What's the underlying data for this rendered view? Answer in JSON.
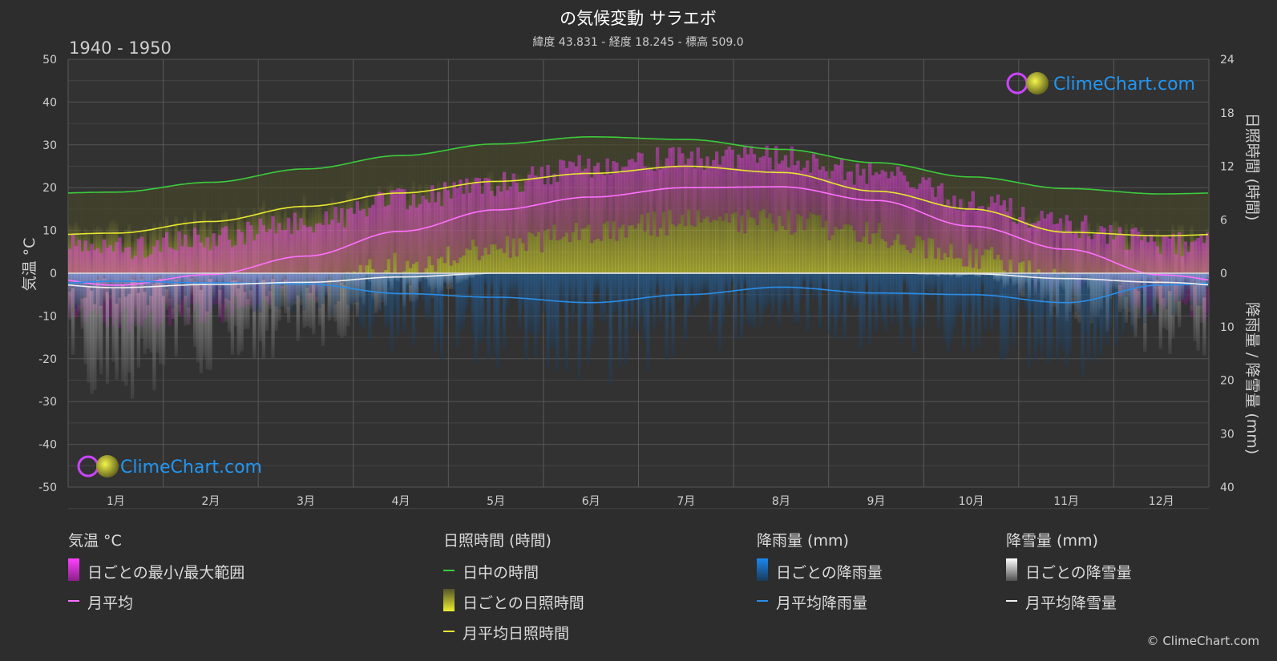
{
  "title": "の気候変動 サラエボ",
  "subtitle": "緯度 43.831 - 経度 18.245 - 標高 509.0",
  "period": "1940 - 1950",
  "brand": "ClimeChart.com",
  "copyright": "© ClimeChart.com",
  "colors": {
    "background": "#2d2d2d",
    "temp_range": "#e040e0",
    "temp_avg": "#ff70ff",
    "daylight": "#3ccc3c",
    "sunshine_fill": "#b0b030",
    "sunshine_avg": "#e8e830",
    "rain": "#1a78d0",
    "rain_avg": "#2a8ee8",
    "snow": "#8a8a8a",
    "snow_avg": "#f0f0f0",
    "brand": "#2196f3"
  },
  "chart_data": {
    "type": "line",
    "categories": [
      "1月",
      "2月",
      "3月",
      "4月",
      "5月",
      "6月",
      "7月",
      "8月",
      "9月",
      "10月",
      "11月",
      "12月"
    ],
    "y_left": {
      "label": "気温 °C",
      "ticks": [
        50,
        40,
        30,
        20,
        10,
        0,
        -10,
        -20,
        -30,
        -40,
        -50
      ],
      "range": [
        -50,
        50
      ]
    },
    "y_right_top": {
      "label": "日照時間 (時間)",
      "ticks": [
        24,
        18,
        12,
        6,
        0
      ],
      "range": [
        0,
        24
      ]
    },
    "y_right_bottom": {
      "label": "降雨量 / 降雪量 (mm)",
      "ticks": [
        0,
        10,
        20,
        30,
        40
      ],
      "range": [
        0,
        40
      ]
    },
    "series": {
      "temp_avg_monthly": [
        -2.8,
        -0.3,
        4.0,
        9.8,
        14.8,
        17.8,
        20.0,
        20.2,
        17.0,
        11.0,
        5.6,
        -0.4
      ],
      "temp_daily_max_envelope": [
        6,
        8,
        12,
        17,
        21,
        25,
        27,
        27,
        23,
        17,
        11,
        7
      ],
      "temp_daily_min_envelope": [
        -11,
        -9,
        -4,
        2,
        6,
        10,
        12,
        12,
        9,
        4,
        -2,
        -7
      ],
      "daylight_hours": [
        9.1,
        10.2,
        11.7,
        13.2,
        14.5,
        15.3,
        15.0,
        13.9,
        12.4,
        10.8,
        9.5,
        8.9
      ],
      "sunshine_avg_hours": [
        4.5,
        5.8,
        7.5,
        9.0,
        10.3,
        11.2,
        12.0,
        11.3,
        9.2,
        7.2,
        4.6,
        4.2
      ],
      "rain_avg_mm": [
        1.5,
        1.8,
        2.0,
        3.8,
        4.5,
        5.5,
        4.0,
        2.6,
        3.7,
        4.0,
        5.5,
        2.2
      ],
      "snow_avg_mm": [
        2.7,
        2.1,
        1.7,
        0.7,
        0.0,
        0.0,
        0.0,
        0.0,
        0.0,
        0.1,
        1.0,
        1.7
      ]
    }
  },
  "legend": {
    "temperature": {
      "header": "気温 °C",
      "items": [
        "日ごとの最小/最大範囲",
        "月平均"
      ]
    },
    "sunshine": {
      "header": "日照時間 (時間)",
      "items": [
        "日中の時間",
        "日ごとの日照時間",
        "月平均日照時間"
      ]
    },
    "rain": {
      "header": "降雨量 (mm)",
      "items": [
        "日ごとの降雨量",
        "月平均降雨量"
      ]
    },
    "snow": {
      "header": "降雪量 (mm)",
      "items": [
        "日ごとの降雪量",
        "月平均降雪量"
      ]
    }
  }
}
